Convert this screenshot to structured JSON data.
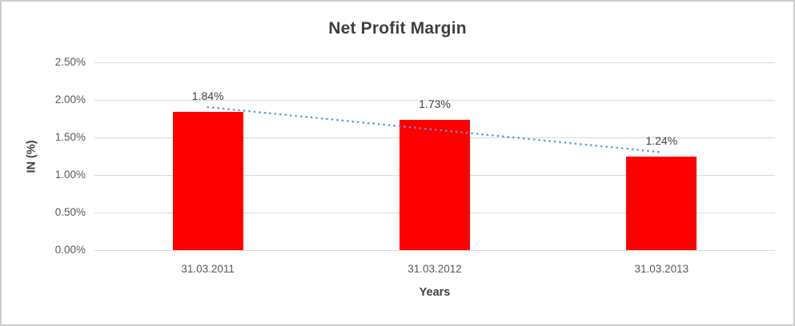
{
  "chart_data": {
    "type": "bar",
    "title": "Net Profit Margin",
    "categories": [
      "31.03.2011",
      "31.03.2012",
      "31.03.2013"
    ],
    "values": [
      1.84,
      1.73,
      1.24
    ],
    "data_labels": [
      "1.84%",
      "1.73%",
      "1.24%"
    ],
    "xlabel": "Years",
    "ylabel": "IN (%)",
    "ylim": [
      0,
      2.5
    ],
    "ytick_step": 0.5,
    "ytick_labels": [
      "0.00%",
      "0.50%",
      "1.00%",
      "1.50%",
      "2.00%",
      "2.50%"
    ],
    "grid": true,
    "legend": false,
    "bar_color": "#FF0000",
    "trendline": {
      "type": "linear",
      "style": "dotted",
      "color": "#5B9BD5"
    },
    "colors": {
      "title_text": "#3f3f3f",
      "tick_text": "#595959",
      "data_label_text": "#404040",
      "gridline": "#d9d9d9",
      "chart_border": "#cdcdcd",
      "background": "#ffffff"
    }
  }
}
